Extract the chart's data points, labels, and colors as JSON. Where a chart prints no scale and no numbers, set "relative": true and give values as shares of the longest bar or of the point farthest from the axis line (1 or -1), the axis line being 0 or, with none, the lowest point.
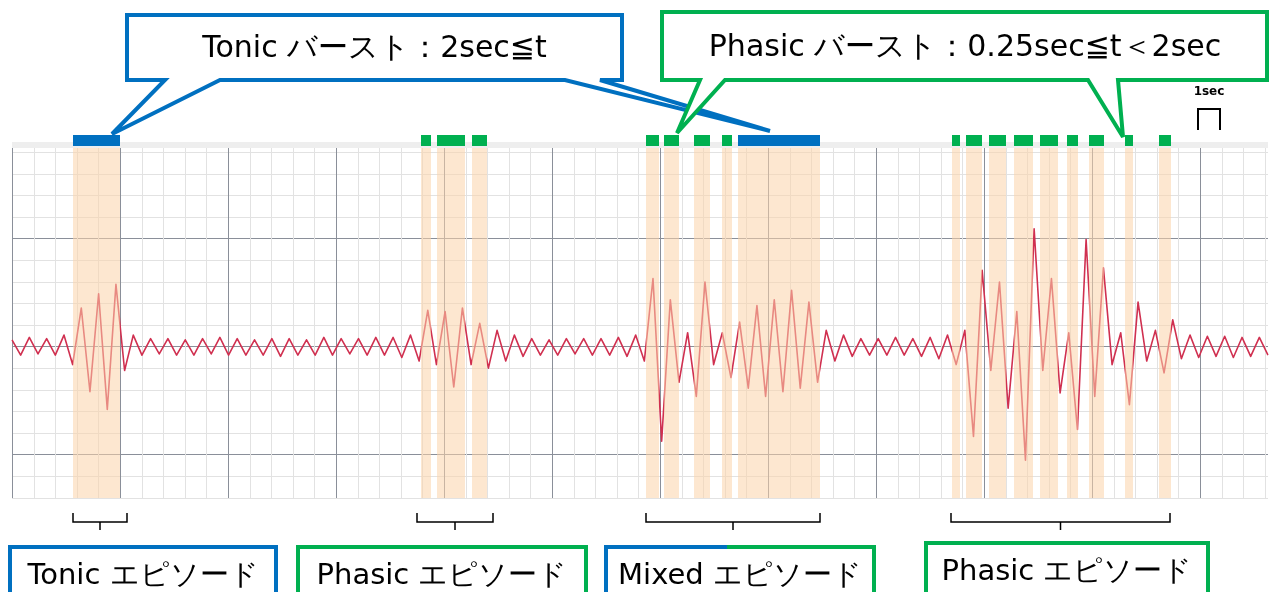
{
  "chart_data": {
    "type": "line",
    "relative": true,
    "legend": false,
    "grid": true,
    "marker": "none",
    "line_style": "solid",
    "categories": [
      null,
      null,
      null,
      null,
      null,
      null,
      null,
      null,
      null,
      null,
      null,
      null,
      null,
      null,
      null,
      null,
      null,
      null,
      null,
      null,
      null,
      null,
      null,
      null,
      null,
      null,
      null,
      null,
      null,
      null,
      null,
      null,
      null,
      null,
      null,
      null,
      null,
      null,
      null,
      null,
      null,
      null,
      null,
      null,
      null,
      null,
      null,
      null,
      null,
      null,
      null,
      null,
      null,
      null,
      null,
      null,
      null,
      null,
      null,
      null,
      null,
      null,
      null,
      null,
      null,
      null,
      null,
      null,
      null,
      null,
      null,
      null,
      null,
      null,
      null,
      null,
      null,
      null,
      null,
      null,
      null,
      null,
      null,
      null,
      null,
      null,
      null,
      null,
      null,
      null,
      null,
      null,
      null,
      null,
      null,
      null,
      null,
      null,
      null,
      null,
      null,
      null,
      null,
      null,
      null,
      null,
      null,
      null,
      null,
      null,
      null,
      null,
      null,
      null,
      null,
      null,
      null,
      null,
      null,
      null,
      null,
      null,
      null,
      null,
      null,
      null,
      null,
      null,
      null,
      null,
      null,
      null,
      null,
      null,
      null,
      null,
      null,
      null,
      null,
      null,
      null,
      null,
      null,
      null,
      null,
      null
    ],
    "series": [
      {
        "color": "#d03050",
        "values": [
          0.06,
          -0.07,
          0.08,
          -0.06,
          0.07,
          -0.07,
          0.1,
          -0.15,
          0.33,
          -0.38,
          0.45,
          -0.53,
          0.53,
          -0.2,
          0.1,
          -0.07,
          0.07,
          -0.06,
          0.07,
          -0.07,
          0.06,
          -0.07,
          0.07,
          -0.06,
          0.08,
          -0.07,
          0.07,
          -0.07,
          0.06,
          -0.07,
          0.07,
          -0.08,
          0.07,
          -0.07,
          0.06,
          -0.07,
          0.08,
          -0.07,
          0.07,
          -0.06,
          0.07,
          -0.07,
          0.08,
          -0.07,
          0.08,
          -0.09,
          0.1,
          -0.12,
          0.31,
          -0.15,
          0.3,
          -0.34,
          0.33,
          -0.15,
          0.2,
          -0.18,
          0.14,
          -0.12,
          0.1,
          -0.08,
          0.07,
          -0.07,
          0.06,
          -0.07,
          0.07,
          -0.06,
          0.07,
          -0.07,
          0.07,
          -0.07,
          0.08,
          -0.08,
          0.1,
          -0.12,
          0.58,
          -0.8,
          0.4,
          -0.3,
          0.12,
          -0.42,
          0.55,
          -0.15,
          0.12,
          -0.26,
          0.21,
          -0.35,
          0.35,
          -0.42,
          0.4,
          -0.38,
          0.48,
          -0.35,
          0.38,
          -0.3,
          0.14,
          -0.12,
          0.1,
          -0.08,
          0.07,
          -0.07,
          0.07,
          -0.07,
          0.08,
          -0.07,
          0.07,
          -0.08,
          0.08,
          -0.1,
          0.1,
          -0.15,
          0.14,
          -0.76,
          0.65,
          -0.2,
          0.55,
          -0.52,
          0.3,
          -0.96,
          1.0,
          -0.2,
          0.58,
          -0.39,
          0.12,
          -0.7,
          0.91,
          -0.42,
          0.67,
          -0.15,
          0.12,
          -0.49,
          0.38,
          -0.12,
          0.14,
          -0.22,
          0.23,
          -0.1,
          0.1,
          -0.09,
          0.09,
          -0.08,
          0.09,
          -0.09,
          0.08,
          -0.08,
          0.08,
          -0.07
        ]
      }
    ],
    "annotations": [
      "Tonic バースト：2sec≦t",
      "Phasic バースト：0.25sec≦t＜2sec",
      "1sec",
      "Tonic エピソード",
      "Phasic エピソード",
      "Mixed エピソード",
      "Phasic エピソード"
    ]
  }
}
